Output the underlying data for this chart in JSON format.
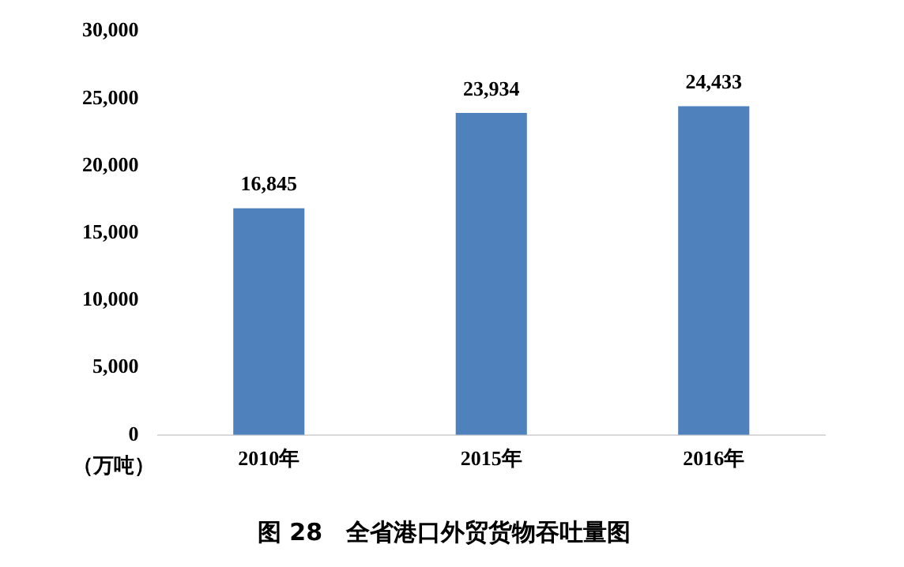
{
  "chart_data": {
    "type": "bar",
    "title": "图 28　全省港口外贸货物吞吐量图",
    "ylabel": "（万吨）",
    "categories": [
      "2010年",
      "2015年",
      "2016年"
    ],
    "values": [
      16845,
      23934,
      24433
    ],
    "value_labels": [
      "16,845",
      "23,934",
      "24,433"
    ],
    "color": "#4f81bd",
    "ylim": [
      0,
      30000
    ],
    "yticks": [
      0,
      {
        "value": 5000,
        "label": "5,000"
      },
      {
        "value": 10000,
        "label": "10,000"
      },
      {
        "value": 15000,
        "label": "15,000"
      },
      {
        "value": 20000,
        "label": "20,000"
      },
      {
        "value": 25000,
        "label": "25,000"
      },
      {
        "value": 30000,
        "label": "30,000"
      }
    ],
    "grid": false,
    "legend": false
  }
}
